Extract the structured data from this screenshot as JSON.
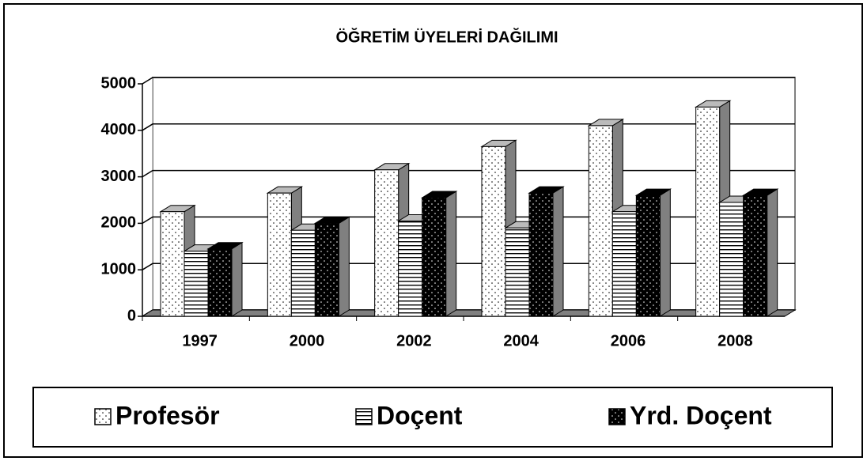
{
  "chart_data": {
    "type": "bar3d",
    "title": "ÖĞRETİM ÜYELERİ DAĞILIMI",
    "categories": [
      "1997",
      "2000",
      "2002",
      "2004",
      "2006",
      "2008"
    ],
    "series": [
      {
        "name": "Profesör",
        "color": "#ffffff",
        "values": [
          2250,
          2650,
          3150,
          3650,
          4100,
          4500
        ]
      },
      {
        "name": "Doçent",
        "color": "#ffffff",
        "values": [
          1400,
          1850,
          2050,
          1900,
          2250,
          2450
        ]
      },
      {
        "name": "Yrd. Doçent",
        "color": "#000000",
        "values": [
          1450,
          2000,
          2550,
          2650,
          2600,
          2600
        ]
      }
    ],
    "ylim": [
      0,
      5000
    ],
    "yticks": [
      0,
      1000,
      2000,
      3000,
      4000,
      5000
    ],
    "grid": true,
    "legend": "bottom"
  }
}
